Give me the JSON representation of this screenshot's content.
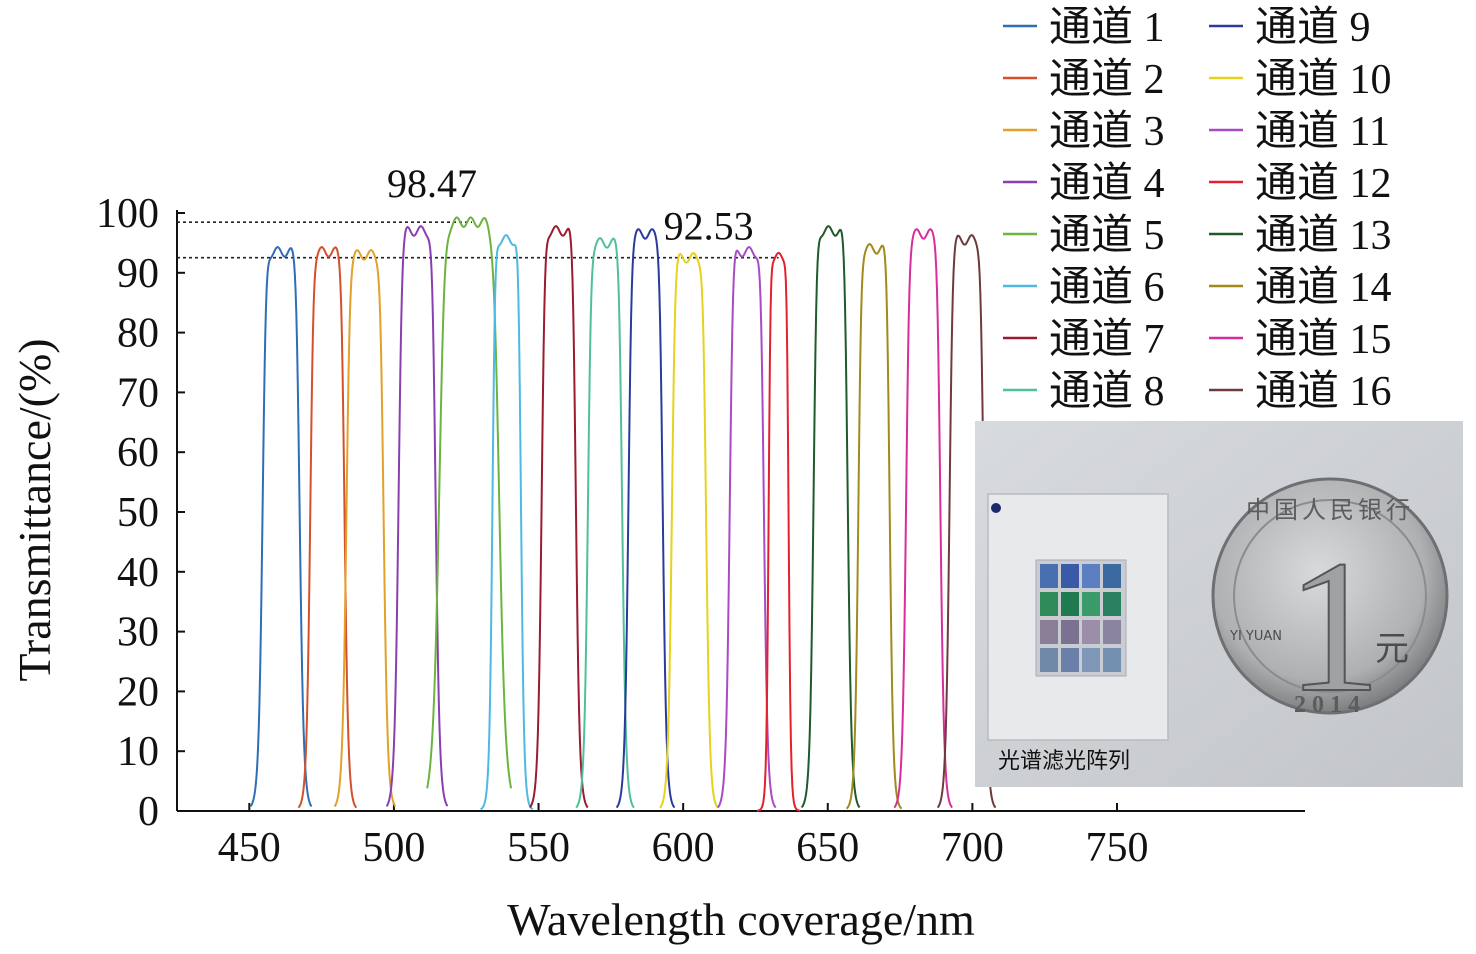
{
  "chart_data": {
    "type": "line",
    "title": "",
    "xlabel": "Wavelength coverage/nm",
    "ylabel": "Transmittance/(%)",
    "xlim": [
      425,
      815
    ],
    "ylim": [
      0,
      100
    ],
    "xticks": [
      450,
      500,
      550,
      600,
      650,
      700,
      750
    ],
    "yticks": [
      0,
      10,
      20,
      30,
      40,
      50,
      60,
      70,
      80,
      90,
      100
    ],
    "grid": false,
    "legend_position": "top-right",
    "annotations": [
      {
        "label": "98.47",
        "x": 527,
        "y": 98.47
      },
      {
        "label": "92.53",
        "x": 633,
        "y": 92.53
      }
    ],
    "series": [
      {
        "name": "通道 1",
        "color": "#2f6eb5",
        "center": 461,
        "width": 13,
        "peak": 93.5
      },
      {
        "name": "通道 2",
        "color": "#d4502a",
        "center": 477,
        "width": 12,
        "peak": 93.5
      },
      {
        "name": "通道 3",
        "color": "#e2a12b",
        "center": 490,
        "width": 13,
        "peak": 93.0
      },
      {
        "name": "通道 4",
        "color": "#8a3fb0",
        "center": 508,
        "width": 13,
        "peak": 97.0
      },
      {
        "name": "通道 5",
        "color": "#6db33f",
        "center": 526,
        "width": 21,
        "peak": 98.47
      },
      {
        "name": "通道 6",
        "color": "#4fb9e0",
        "center": 539,
        "width": 10,
        "peak": 95.5
      },
      {
        "name": "通道 7",
        "color": "#9b1b30",
        "center": 557,
        "width": 12,
        "peak": 97.0
      },
      {
        "name": "通道 8",
        "color": "#4fc09a",
        "center": 573,
        "width": 12,
        "peak": 95.0
      },
      {
        "name": "通道 9",
        "color": "#2b3a9c",
        "center": 587,
        "width": 12,
        "peak": 96.5
      },
      {
        "name": "通道 10",
        "color": "#e6d21c",
        "center": 602,
        "width": 12,
        "peak": 92.5
      },
      {
        "name": "通道 11",
        "color": "#a64cc4",
        "center": 622,
        "width": 12,
        "peak": 93.5
      },
      {
        "name": "通道 12",
        "color": "#e2202e",
        "center": 633,
        "width": 7,
        "peak": 92.53
      },
      {
        "name": "通道 13",
        "color": "#1f5a2a",
        "center": 651,
        "width": 12,
        "peak": 97.0
      },
      {
        "name": "通道 14",
        "color": "#a08a1c",
        "center": 666,
        "width": 11,
        "peak": 94.0
      },
      {
        "name": "通道 15",
        "color": "#d62e9a",
        "center": 683,
        "width": 12,
        "peak": 96.5
      },
      {
        "name": "通道 16",
        "color": "#6e3a3a",
        "center": 698,
        "width": 12,
        "peak": 95.5
      }
    ]
  },
  "photo": {
    "caption": "光谱滤光阵列",
    "coin_denomination": "1",
    "coin_unit": "元",
    "coin_year": "2014",
    "coin_inscription": "中国人民银行",
    "coin_pinyin": "YI YUAN",
    "filter_cell_colors": [
      [
        "#4a6fb0",
        "#3a5aa8",
        "#5a7ec0",
        "#3c6aa0"
      ],
      [
        "#2f8a5a",
        "#1f7a50",
        "#3b9a6a",
        "#2a8060"
      ],
      [
        "#8a7e96",
        "#7a7290",
        "#9a8ea8",
        "#8a84a0"
      ],
      [
        "#7088a8",
        "#6a80a8",
        "#8098b8",
        "#7490b0"
      ]
    ]
  }
}
